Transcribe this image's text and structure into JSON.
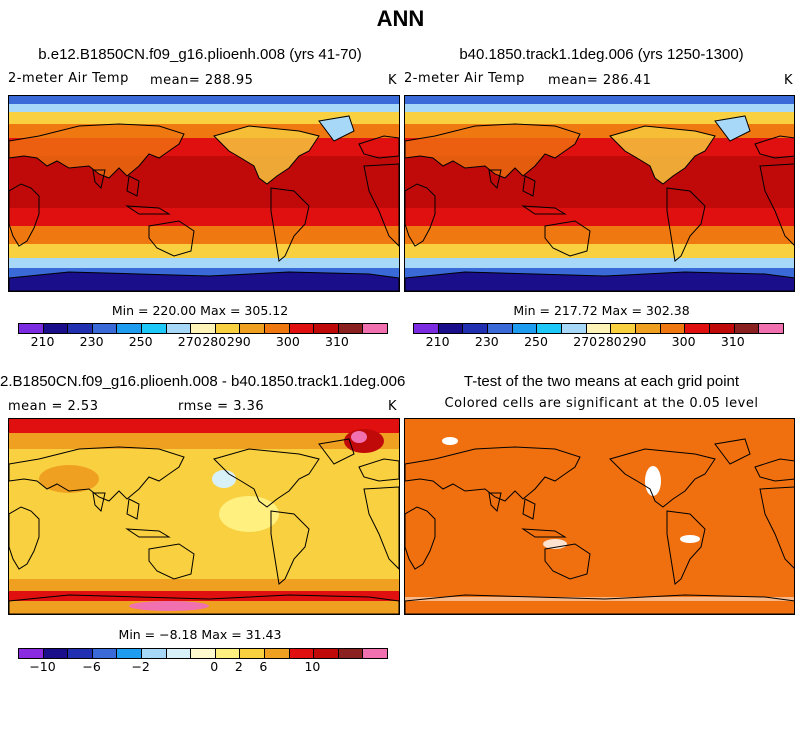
{
  "page_title": "ANN",
  "colors": {
    "abs_scale": [
      "#7b2be0",
      "#1a0e8a",
      "#2030b0",
      "#3a6ad8",
      "#1e9cf0",
      "#1ec8f8",
      "#a8d8f8",
      "#fff4b8",
      "#f8d040",
      "#f0a020",
      "#f07810",
      "#e01010",
      "#c00a0a",
      "#8a2020",
      "#f070b0"
    ],
    "diff_scale": [
      "#8a2be2",
      "#1a0e8a",
      "#2030b0",
      "#3a6ad8",
      "#1e9cf0",
      "#a8d8f8",
      "#d8f0f8",
      "#fffacd",
      "#fff080",
      "#f8d040",
      "#f0a020",
      "#e01010",
      "#c00a0a",
      "#8a2020",
      "#f070b0"
    ],
    "ttest_fill": "#f07010"
  },
  "chart_data": [
    {
      "type": "heatmap",
      "title": "b.e12.B1850CN.f09_g16.plioenh.008 (yrs 41-70)",
      "variable": "2-meter Air Temp",
      "mean_label": "mean= 288.95",
      "units": "K",
      "min": 220.0,
      "max": 305.12,
      "minmax_label": "Min = 220.00 Max = 305.12",
      "colorbar_ticks": [
        "210",
        "230",
        "250",
        "270",
        "280",
        "290",
        "300",
        "310"
      ]
    },
    {
      "type": "heatmap",
      "title": "b40.1850.track1.1deg.006 (yrs 1250-1300)",
      "variable": "2-meter Air Temp",
      "mean_label": "mean= 286.41",
      "units": "K",
      "min": 217.72,
      "max": 302.38,
      "minmax_label": "Min = 217.72 Max = 302.38",
      "colorbar_ticks": [
        "210",
        "230",
        "250",
        "270",
        "280",
        "290",
        "300",
        "310"
      ]
    },
    {
      "type": "heatmap",
      "title": "2.B1850CN.f09_g16.plioenh.008 - b40.1850.track1.1deg.006",
      "mean_label": "mean =    2.53",
      "rmse_label": "rmse =    3.36",
      "units": "K",
      "min": -8.18,
      "max": 31.43,
      "minmax_label": "Min =  −8.18 Max =  31.43",
      "colorbar_ticks": [
        "−10",
        "−6",
        "−2",
        "0",
        "2",
        "6",
        "10"
      ]
    },
    {
      "type": "heatmap",
      "title": "T-test of the two means at each grid point",
      "subtitle": "Colored cells are significant at the 0.05 level"
    }
  ]
}
